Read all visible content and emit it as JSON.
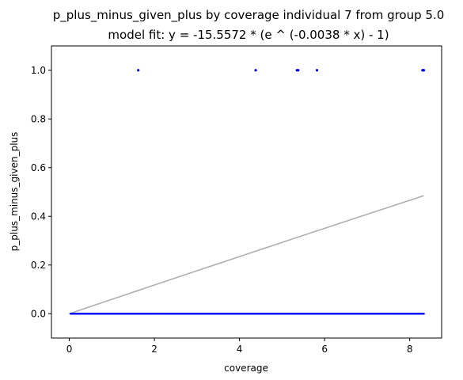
{
  "chart_data": {
    "type": "scatter",
    "title": "p_plus_minus_given_plus by coverage individual 7 from group 5.0",
    "subtitle": "model fit: y = -15.5572 * (e ^ (-0.0038 * x) - 1)",
    "xlabel": "coverage",
    "ylabel": "p_plus_minus_given_plus",
    "xlim": [
      -0.42,
      8.75
    ],
    "ylim": [
      -0.1,
      1.1
    ],
    "xticks": [
      0,
      2,
      4,
      6,
      8
    ],
    "xtick_labels": [
      "0",
      "2",
      "4",
      "6",
      "8"
    ],
    "yticks": [
      0.0,
      0.2,
      0.4,
      0.6,
      0.8,
      1.0
    ],
    "ytick_labels": [
      "0.0",
      "0.2",
      "0.4",
      "0.6",
      "0.8",
      "1.0"
    ],
    "grid": false,
    "series": [
      {
        "kind": "scatter",
        "color": "#0000ff",
        "points_at_one_x": [
          1.62,
          4.38,
          5.35,
          5.38,
          5.82,
          8.3,
          8.32,
          8.33
        ],
        "points_at_zero_x_range": [
          0.03,
          8.33
        ],
        "points_at_zero_count": 300
      },
      {
        "kind": "line",
        "color": "#b0b0b0",
        "fit": {
          "a": -15.5572,
          "b": -0.0038
        },
        "x_range": [
          0.0,
          8.33
        ]
      }
    ]
  }
}
